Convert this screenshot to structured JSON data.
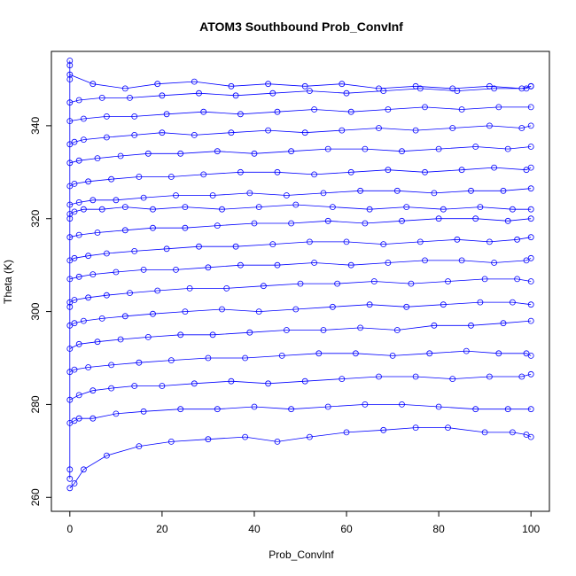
{
  "chart_data": {
    "type": "line",
    "title": "ATOM3 Southbound Prob_ConvInf",
    "xlabel": "Prob_ConvInf",
    "ylabel": "Theta (K)",
    "xlim": [
      -4,
      104
    ],
    "ylim": [
      257,
      356
    ],
    "xticks": [
      0,
      20,
      40,
      60,
      80,
      100
    ],
    "yticks": [
      260,
      280,
      300,
      320,
      340
    ],
    "grid": false,
    "legend": "none",
    "marker": "open-circle",
    "color": "#0000ff",
    "series": [
      {
        "x": [
          0,
          1,
          3,
          8,
          15,
          22,
          30,
          38,
          45,
          52,
          60,
          68,
          75,
          82,
          90,
          96,
          99,
          100
        ],
        "y": [
          262,
          263,
          266,
          269,
          271,
          272,
          272.5,
          273,
          272,
          273,
          274,
          274.5,
          275,
          275,
          274,
          274,
          273.5,
          273
        ]
      },
      {
        "x": [
          0,
          1,
          2,
          5,
          10,
          16,
          24,
          32,
          40,
          48,
          56,
          64,
          72,
          80,
          88,
          95,
          100
        ],
        "y": [
          276,
          276.5,
          277,
          277,
          278,
          278.5,
          279,
          279,
          279.5,
          279,
          279.5,
          280,
          280,
          279.5,
          279,
          279,
          279
        ]
      },
      {
        "x": [
          0,
          2,
          5,
          9,
          14,
          20,
          27,
          35,
          43,
          51,
          59,
          67,
          75,
          83,
          91,
          98,
          100
        ],
        "y": [
          281,
          282,
          283,
          283.5,
          284,
          284,
          284.5,
          285,
          284.5,
          285,
          285.5,
          286,
          286,
          285.5,
          286,
          286,
          286.5
        ]
      },
      {
        "x": [
          0,
          1,
          4,
          9,
          15,
          22,
          30,
          38,
          46,
          54,
          62,
          70,
          78,
          86,
          93,
          99,
          100
        ],
        "y": [
          287,
          287.5,
          288,
          288.5,
          289,
          289.5,
          290,
          290,
          290.5,
          291,
          291,
          290.5,
          291,
          291.5,
          291,
          291,
          290.5
        ]
      },
      {
        "x": [
          0,
          2,
          6,
          11,
          17,
          24,
          31,
          39,
          47,
          55,
          63,
          71,
          79,
          87,
          94,
          100
        ],
        "y": [
          292,
          293,
          293.5,
          294,
          294.5,
          295,
          295,
          295.5,
          296,
          296,
          296.5,
          296,
          297,
          297,
          297.5,
          298
        ]
      },
      {
        "x": [
          0,
          1,
          3,
          7,
          12,
          18,
          25,
          33,
          41,
          49,
          57,
          65,
          73,
          81,
          89,
          96,
          100
        ],
        "y": [
          297,
          297.5,
          298,
          298.5,
          299,
          299.5,
          300,
          300.5,
          300,
          300.5,
          301,
          301.5,
          301,
          301.5,
          302,
          302,
          301.5
        ]
      },
      {
        "x": [
          0,
          0,
          1,
          4,
          8,
          13,
          19,
          26,
          34,
          42,
          50,
          58,
          66,
          74,
          82,
          90,
          97,
          100
        ],
        "y": [
          301,
          302,
          302.5,
          303,
          303.5,
          304,
          304.5,
          305,
          305,
          305.5,
          306,
          306,
          306.5,
          306,
          306.5,
          307,
          307,
          306.5
        ]
      },
      {
        "x": [
          0,
          2,
          5,
          10,
          16,
          23,
          30,
          37,
          45,
          53,
          61,
          69,
          77,
          85,
          92,
          99,
          100
        ],
        "y": [
          307,
          307.5,
          308,
          308.5,
          309,
          309,
          309.5,
          310,
          310,
          310.5,
          310,
          310.5,
          311,
          311,
          310.5,
          311,
          311.5
        ]
      },
      {
        "x": [
          0,
          1,
          4,
          8,
          14,
          21,
          28,
          36,
          44,
          52,
          60,
          68,
          76,
          84,
          91,
          97,
          100
        ],
        "y": [
          311,
          311.5,
          312,
          312.5,
          313,
          313.5,
          314,
          314,
          314.5,
          315,
          315,
          314.5,
          315,
          315.5,
          315,
          315.5,
          316
        ]
      },
      {
        "x": [
          0,
          2,
          6,
          12,
          18,
          25,
          32,
          40,
          48,
          56,
          64,
          72,
          80,
          88,
          95,
          100
        ],
        "y": [
          316,
          316.5,
          317,
          317.5,
          318,
          318,
          318.5,
          319,
          319,
          319.5,
          319,
          319.5,
          320,
          320,
          319.5,
          320
        ]
      },
      {
        "x": [
          0,
          0,
          1,
          3,
          7,
          12,
          18,
          25,
          33,
          41,
          49,
          57,
          65,
          73,
          81,
          89,
          96,
          100
        ],
        "y": [
          320,
          321,
          321.5,
          322,
          322,
          322.5,
          322,
          322.5,
          322,
          322.5,
          323,
          322.5,
          322,
          322.5,
          322,
          322.5,
          322,
          322
        ]
      },
      {
        "x": [
          0,
          2,
          5,
          10,
          16,
          23,
          31,
          39,
          47,
          55,
          63,
          71,
          79,
          87,
          94,
          100
        ],
        "y": [
          323,
          323.5,
          324,
          324,
          324.5,
          325,
          325,
          325.5,
          325,
          325.5,
          326,
          326,
          325.5,
          326,
          326,
          326.5
        ]
      },
      {
        "x": [
          0,
          1,
          4,
          9,
          15,
          22,
          29,
          37,
          45,
          53,
          61,
          69,
          77,
          85,
          92,
          99,
          100
        ],
        "y": [
          327,
          327.5,
          328,
          328.5,
          329,
          329,
          329.5,
          330,
          330,
          329.5,
          330,
          330.5,
          330,
          330.5,
          331,
          330.5,
          331
        ]
      },
      {
        "x": [
          0,
          2,
          6,
          11,
          17,
          24,
          32,
          40,
          48,
          56,
          64,
          72,
          80,
          88,
          95,
          100
        ],
        "y": [
          332,
          332.5,
          333,
          333.5,
          334,
          334,
          334.5,
          334,
          334.5,
          335,
          335,
          334.5,
          335,
          335.5,
          335,
          335.5
        ]
      },
      {
        "x": [
          0,
          1,
          3,
          8,
          14,
          20,
          27,
          35,
          43,
          51,
          59,
          67,
          75,
          83,
          91,
          98,
          100
        ],
        "y": [
          336,
          336.5,
          337,
          337.5,
          338,
          338.5,
          338,
          338.5,
          339,
          338.5,
          339,
          339.5,
          339,
          339.5,
          340,
          339.5,
          340
        ]
      },
      {
        "x": [
          0,
          3,
          8,
          14,
          21,
          29,
          37,
          45,
          53,
          61,
          69,
          77,
          85,
          93,
          100
        ],
        "y": [
          341,
          341.5,
          342,
          342,
          342.5,
          343,
          342.5,
          343,
          343.5,
          343,
          343.5,
          344,
          343.5,
          344,
          344
        ]
      },
      {
        "x": [
          0,
          2,
          7,
          13,
          20,
          28,
          36,
          44,
          52,
          60,
          68,
          76,
          84,
          92,
          99,
          100
        ],
        "y": [
          345,
          345.5,
          346,
          346,
          346.5,
          347,
          346.5,
          347,
          347.5,
          347,
          347.5,
          348,
          347.5,
          348,
          348,
          348.5
        ]
      },
      {
        "x": [
          0,
          0,
          5,
          12,
          19,
          27,
          35,
          43,
          51,
          59,
          67,
          75,
          83,
          91,
          98,
          100
        ],
        "y": [
          350,
          351,
          349,
          348,
          349,
          349.5,
          348.5,
          349,
          348.5,
          349,
          348,
          348.5,
          348,
          348.5,
          348,
          348.5
        ]
      },
      {
        "x": [
          0,
          0,
          0,
          0
        ],
        "y": [
          264,
          266,
          353,
          354
        ]
      }
    ]
  }
}
